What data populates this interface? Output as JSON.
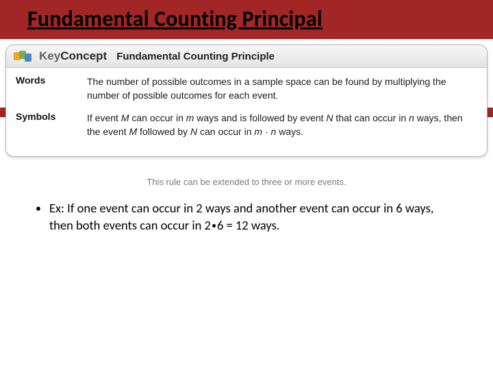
{
  "title": "Fundamental Counting Principal",
  "colors": {
    "band": "#a32626",
    "box_border": "#b5b5b5",
    "header_grad_top": "#f7f7f7",
    "header_grad_bottom": "#e4e4e4",
    "note_gray": "#7a7a7a"
  },
  "keyconcept": {
    "brand_key": "Key",
    "brand_concept": "Concept",
    "title": "Fundamental Counting Principle",
    "rows": {
      "words": {
        "label": "Words",
        "text": "The number of possible outcomes in a sample space can be found by multiplying the number of possible outcomes for each event."
      },
      "symbols": {
        "label": "Symbols",
        "text_html": "If event <i>M</i> can occur in <i>m</i> ways and is followed by event <i>N</i> that can occur in <i>n</i> ways, then the event <i>M</i> followed by <i>N</i> can occur in <i>m</i> · <i>n</i> ways."
      }
    },
    "note": "This rule can be extended to three or more events."
  },
  "example": {
    "prefix": "Ex: ",
    "text_html": "If one event can occur in 2 ways and another event can occur in 6 ways, then both events can occur in 2<span class=\"dot\"></span>6 = 12 ways."
  }
}
